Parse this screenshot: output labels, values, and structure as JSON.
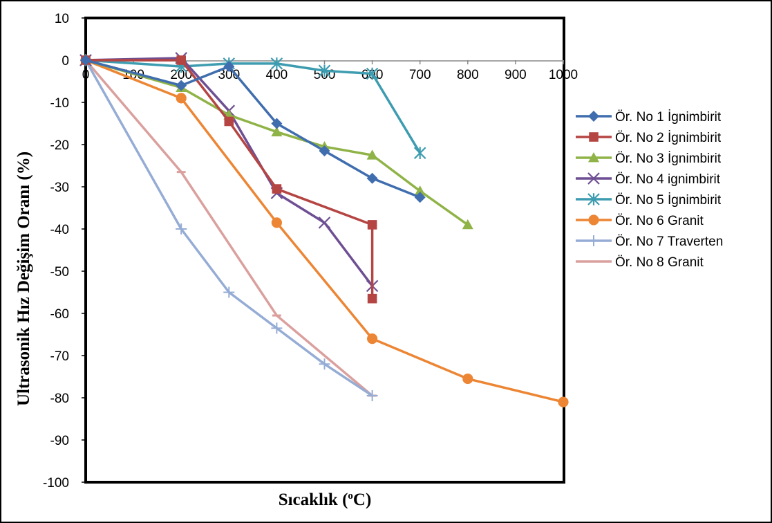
{
  "chart_data": {
    "type": "line",
    "xlabel": "Sıcaklık (°C)",
    "xlabel_parts": {
      "base": "Sıcaklık (",
      "sup": "o",
      "end": "C)"
    },
    "ylabel": "Ultrasonik Hız Değişim Oranı (%)",
    "xlim": [
      0,
      1000
    ],
    "ylim": [
      -100,
      10
    ],
    "x_ticks": [
      0,
      100,
      200,
      300,
      400,
      500,
      600,
      700,
      800,
      900,
      1000
    ],
    "y_ticks": [
      10,
      0,
      -10,
      -20,
      -30,
      -40,
      -50,
      -60,
      -70,
      -80,
      -90,
      -100
    ],
    "grid": false,
    "legend_position": "right",
    "series": [
      {
        "name": "Ör. No 1 İgnimbirit",
        "color": "#3f6dae",
        "marker": "diamond",
        "points": [
          [
            0,
            0
          ],
          [
            200,
            -6
          ],
          [
            300,
            -1.5
          ],
          [
            400,
            -15
          ],
          [
            500,
            -21.5
          ],
          [
            600,
            -28
          ],
          [
            700,
            -32.5
          ]
        ]
      },
      {
        "name": "Ör. No 2 İgnimbirit",
        "color": "#b54543",
        "marker": "square",
        "points": [
          [
            0,
            0
          ],
          [
            200,
            0
          ],
          [
            300,
            -14.5
          ],
          [
            400,
            -30.5
          ],
          [
            600,
            -39
          ],
          [
            600,
            -56.5
          ]
        ]
      },
      {
        "name": "Ör. No 3 İgnimbirit",
        "color": "#8fb347",
        "marker": "triangle",
        "points": [
          [
            0,
            0
          ],
          [
            200,
            -6.5
          ],
          [
            300,
            -13
          ],
          [
            400,
            -17
          ],
          [
            500,
            -20.5
          ],
          [
            600,
            -22.5
          ],
          [
            700,
            -31
          ],
          [
            800,
            -39
          ]
        ]
      },
      {
        "name": "Ör. No 4 ignimbirit",
        "color": "#6e4f93",
        "marker": "x",
        "points": [
          [
            0,
            0
          ],
          [
            200,
            0.5
          ],
          [
            300,
            -12
          ],
          [
            400,
            -31.5
          ],
          [
            500,
            -38.5
          ],
          [
            600,
            -53.5
          ]
        ]
      },
      {
        "name": "Ör. No 5 İgnimbirit",
        "color": "#3d9cb0",
        "marker": "asterisk",
        "points": [
          [
            0,
            0
          ],
          [
            200,
            -1.5
          ],
          [
            300,
            -0.8
          ],
          [
            400,
            -0.8
          ],
          [
            500,
            -2.5
          ],
          [
            600,
            -3.2
          ],
          [
            700,
            -22
          ]
        ]
      },
      {
        "name": "Ör. No 6 Granit",
        "color": "#ec8634",
        "marker": "circle",
        "points": [
          [
            0,
            0
          ],
          [
            200,
            -9
          ],
          [
            400,
            -38.5
          ],
          [
            600,
            -66
          ],
          [
            800,
            -75.5
          ],
          [
            1000,
            -81
          ]
        ]
      },
      {
        "name": "Ör. No 7 Traverten",
        "color": "#95acd5",
        "marker": "plus",
        "points": [
          [
            0,
            0
          ],
          [
            200,
            -40
          ],
          [
            300,
            -55
          ],
          [
            400,
            -63.5
          ],
          [
            500,
            -72
          ],
          [
            600,
            -79.5
          ]
        ]
      },
      {
        "name": "Ör. No 8 Granit",
        "color": "#daa09e",
        "marker": "dash",
        "points": [
          [
            0,
            0
          ],
          [
            200,
            -26.5
          ],
          [
            400,
            -60.5
          ],
          [
            600,
            -79.5
          ]
        ]
      }
    ]
  }
}
